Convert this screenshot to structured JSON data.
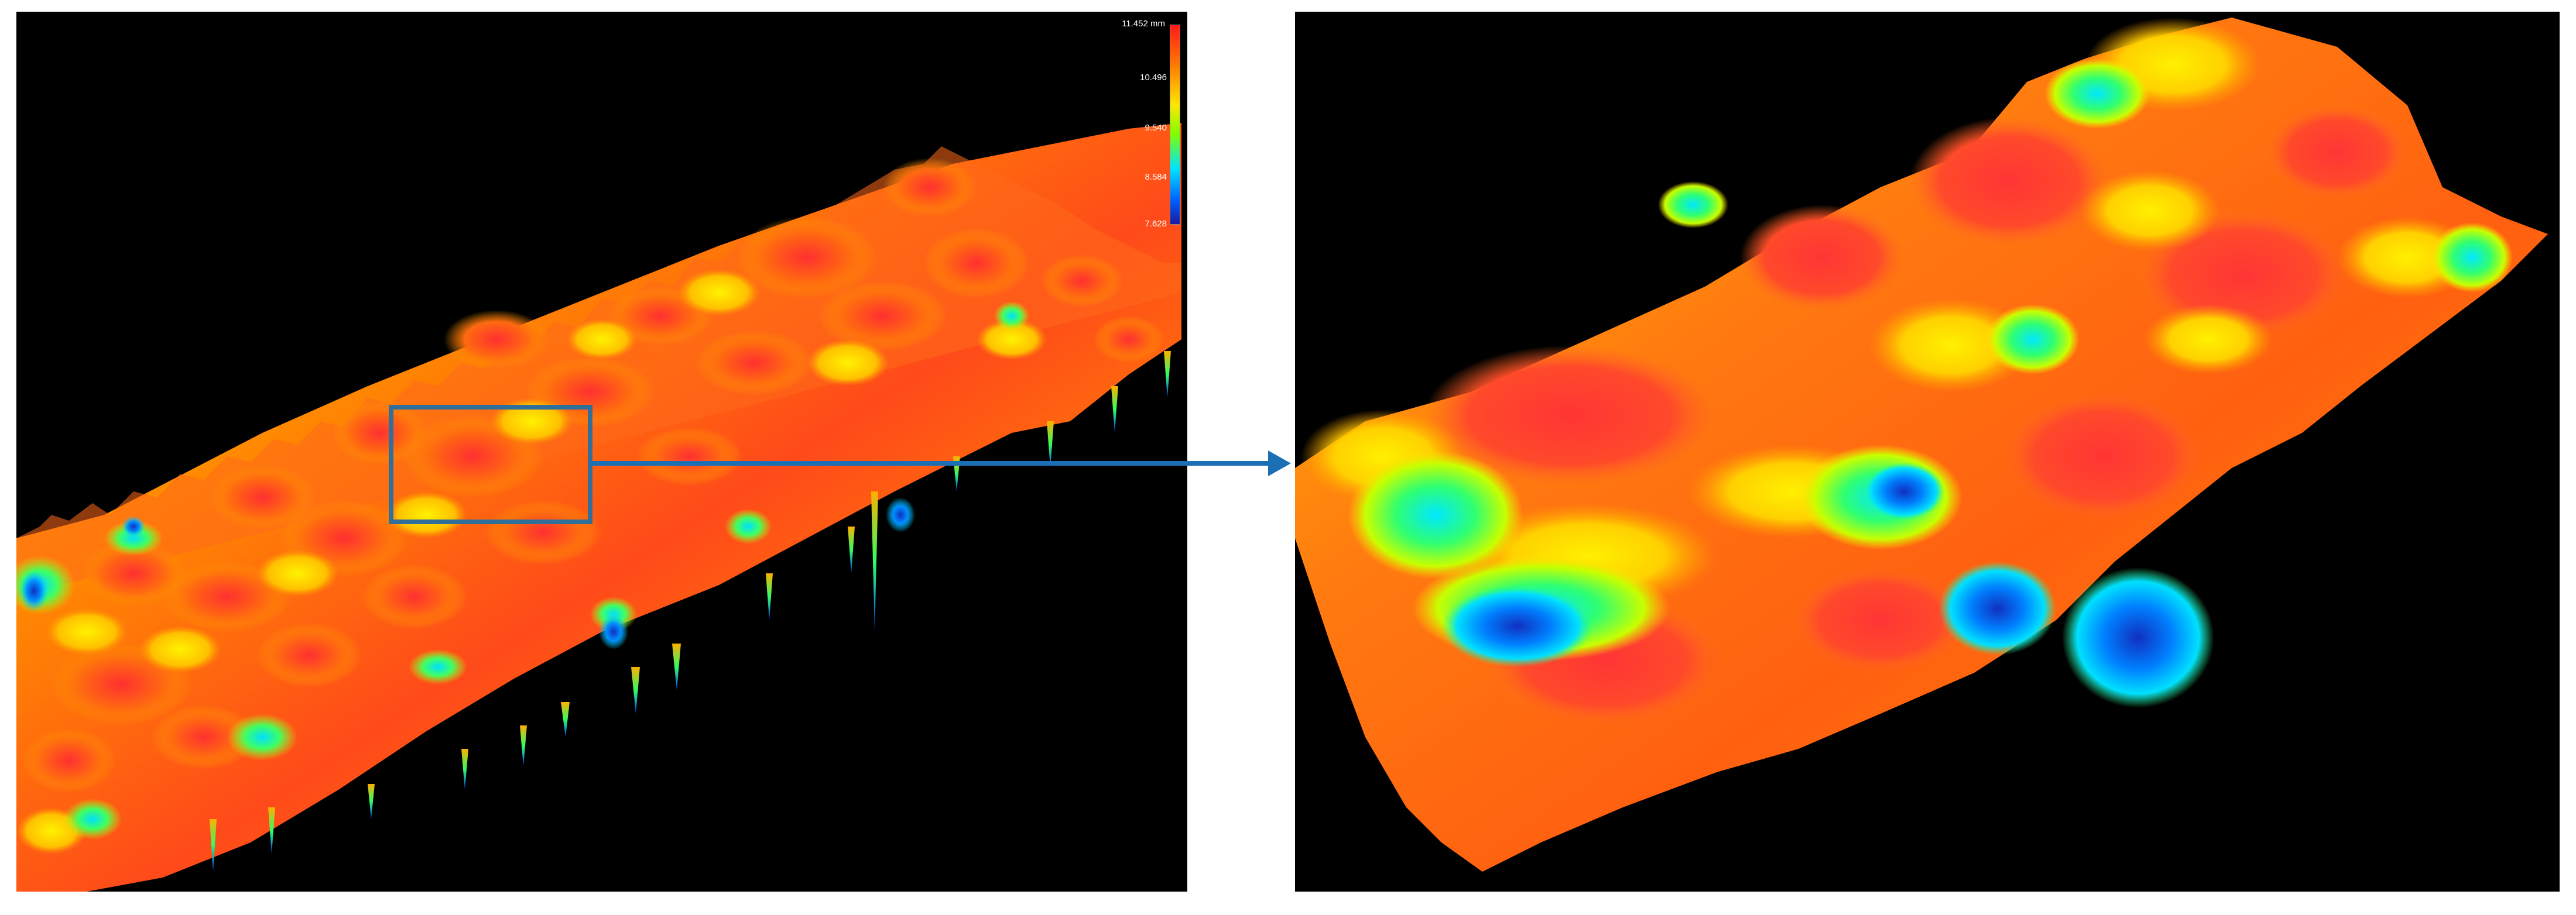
{
  "colorbar": {
    "max_label": "11.452 mm",
    "tick_1": "10.496",
    "tick_2": "9.540",
    "tick_3": "8.584",
    "min_label": "7.628",
    "colors": [
      "#ff1a1a",
      "#ff7a00",
      "#ffe600",
      "#7dff00",
      "#00e5ff",
      "#0060ff",
      "#1a1aa0"
    ]
  },
  "colors": {
    "background": "#000000",
    "highlight_box": "#2f6f99",
    "arrow": "#1a6fb5"
  }
}
